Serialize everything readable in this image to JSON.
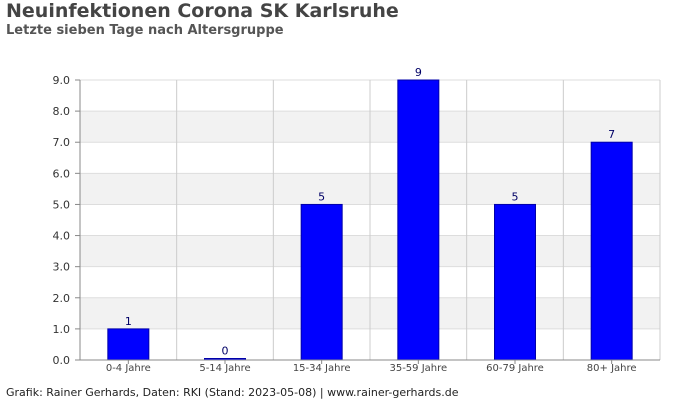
{
  "header": {
    "title": "Neuinfektionen Corona SK Karlsruhe",
    "subtitle": "Letzte sieben Tage nach Altersgruppe"
  },
  "footer": {
    "credit": "Grafik: Rainer Gerhards, Daten: RKI (Stand: 2023-05-08) | www.rainer-gerhards.de"
  },
  "chart_data": {
    "type": "bar",
    "title": "Neuinfektionen Corona SK Karlsruhe",
    "subtitle": "Letzte sieben Tage nach Altersgruppe",
    "xlabel": "",
    "ylabel": "",
    "categories": [
      "0-4 Jahre",
      "5-14 Jahre",
      "15-34 Jahre",
      "35-59 Jahre",
      "60-79 Jahre",
      "80+ Jahre"
    ],
    "values": [
      1,
      0,
      5,
      9,
      5,
      7
    ],
    "value_labels": [
      "1",
      "0",
      "5",
      "9",
      "5",
      "7"
    ],
    "ylim": [
      0,
      9
    ],
    "yticks": [
      "0.0",
      "1.0",
      "2.0",
      "3.0",
      "4.0",
      "5.0",
      "6.0",
      "7.0",
      "8.0",
      "9.0"
    ],
    "grid": true,
    "bar_color": "#0000ff",
    "band_color": "#f2f2f2",
    "legend": "none"
  }
}
